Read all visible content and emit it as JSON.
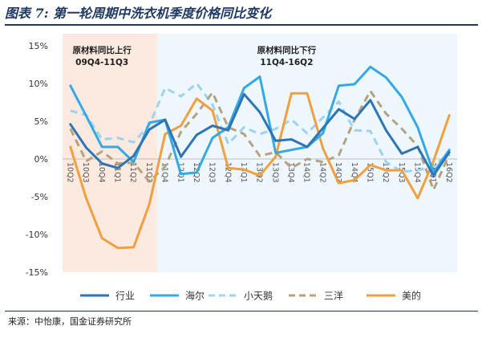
{
  "header": {
    "title": "图表 7: 第一轮周期中洗衣机季度价格同比变化"
  },
  "footer": {
    "source": "来源：中怡康，国金证券研究所"
  },
  "chart_data": {
    "type": "line",
    "x": [
      "10Q2",
      "10Q3",
      "10Q4",
      "11Q1",
      "11Q2",
      "11Q3",
      "11Q4",
      "12Q1",
      "12Q2",
      "12Q3",
      "12Q4",
      "13Q1",
      "13Q2",
      "13Q3",
      "13Q4",
      "14Q1",
      "14Q2",
      "14Q3",
      "14Q4",
      "15Q1",
      "15Q2",
      "15Q3",
      "15Q4",
      "16Q1",
      "16Q2"
    ],
    "ylim": [
      -15,
      15
    ],
    "yticks": [
      15,
      10,
      5,
      0,
      -5,
      -10,
      -15
    ],
    "ytick_labels": [
      "15%",
      "10%",
      "5%",
      "0%",
      "-5%",
      "-10%",
      "-15%"
    ],
    "xlabel": "",
    "ylabel": "",
    "grid": false,
    "legend": "bottom",
    "series": [
      {
        "name": "行业",
        "color": "#2e75b6",
        "dash": "solid",
        "values": [
          4.6,
          1.5,
          -0.6,
          -1.2,
          0.4,
          3.9,
          5.2,
          0.3,
          3.2,
          4.4,
          3.8,
          8.6,
          6.2,
          2.4,
          2.6,
          1.6,
          4.1,
          6.6,
          5.3,
          7.8,
          3.8,
          0.7,
          1.6,
          -2.2,
          0.9
        ]
      },
      {
        "name": "海尔",
        "color": "#34a9e4",
        "dash": "solid",
        "values": [
          9.7,
          5.7,
          1.6,
          1.6,
          -0.4,
          4.8,
          5.2,
          -2.0,
          -1.8,
          2.8,
          4.2,
          9.4,
          10.9,
          0.8,
          1.2,
          1.6,
          3.4,
          9.7,
          9.9,
          12.2,
          10.8,
          8.2,
          4.2,
          -1.8,
          1.2
        ]
      },
      {
        "name": "小天鹅",
        "color": "#9dd3f0",
        "dash": "dash",
        "values": [
          6.4,
          5.8,
          2.6,
          2.8,
          2.2,
          4.5,
          9.4,
          8.3,
          10.0,
          7.2,
          2.0,
          4.2,
          3.3,
          4.0,
          5.2,
          3.4,
          5.5,
          7.6,
          3.8,
          3.7,
          -0.4,
          -1.7,
          -1.5,
          -1.0,
          0.8
        ]
      },
      {
        "name": "三洋",
        "color": "#b5a27e",
        "dash": "dash",
        "values": [
          4.0,
          -0.3,
          1.0,
          -0.6,
          -0.5,
          -3.0,
          -1.0,
          3.6,
          6.0,
          8.8,
          4.2,
          3.3,
          0.4,
          0.9,
          -1.2,
          0.0,
          -0.4,
          0.5,
          5.2,
          9.0,
          6.0,
          4.0,
          1.7,
          -4.1,
          0.6
        ]
      },
      {
        "name": "美的",
        "color": "#f0a040",
        "dash": "solid",
        "values": [
          1.6,
          -5.2,
          -10.5,
          -11.8,
          -11.7,
          -6.0,
          3.3,
          4.4,
          8.0,
          6.4,
          -1.2,
          -1.4,
          -2.2,
          0.3,
          8.7,
          8.7,
          1.4,
          -3.2,
          -2.8,
          -0.8,
          -1.5,
          -1.5,
          -5.2,
          -0.3,
          5.8
        ]
      }
    ],
    "annotations": [
      {
        "line1": "原材料同比上行",
        "line2": "09Q4-11Q3"
      },
      {
        "line1": "原材料同比下行",
        "line2": "11Q4-16Q2"
      }
    ]
  }
}
